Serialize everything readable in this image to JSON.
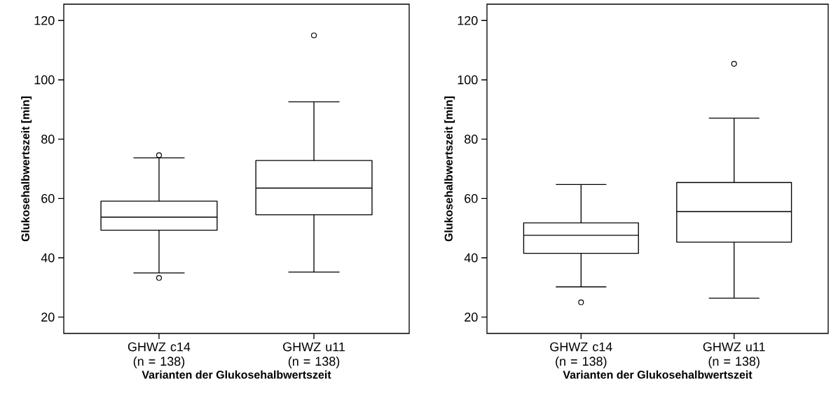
{
  "chart_data": [
    {
      "type": "box",
      "categories": [
        "GHWZ c14 (n = 138)",
        "GHWZ u11 (n = 138)"
      ],
      "boxes": [
        {
          "low": 34.9,
          "q1": 49.3,
          "median": 53.7,
          "q3": 59.1,
          "high": 73.7,
          "outliers": [
            74.6,
            33.2
          ]
        },
        {
          "low": 35.2,
          "q1": 54.5,
          "median": 63.5,
          "q3": 72.8,
          "high": 92.6,
          "outliers": [
            115.0
          ]
        }
      ],
      "color": "#000000",
      "xlabel": "Varianten der Glukosehalbwertszeit",
      "ylabel": "Glukosehalbwertszeit [min]",
      "ylim": [
        14.5,
        125.5
      ],
      "yticks": [
        20,
        40,
        60,
        80,
        100,
        120
      ]
    },
    {
      "type": "box",
      "categories": [
        "GHWZ c14 (n = 138)",
        "GHWZ u11 (n = 138)"
      ],
      "boxes": [
        {
          "low": 30.2,
          "q1": 41.5,
          "median": 47.6,
          "q3": 51.8,
          "high": 64.7,
          "outliers": [
            25.0
          ]
        },
        {
          "low": 26.4,
          "q1": 45.3,
          "median": 55.6,
          "q3": 65.4,
          "high": 87.1,
          "outliers": [
            105.4
          ]
        }
      ],
      "color": "#000000",
      "xlabel": "Varianten der Glukosehalbwertszeit",
      "ylabel": "Glukosehalbwertszeit [min]",
      "ylim": [
        14.5,
        125.5
      ],
      "yticks": [
        20,
        40,
        60,
        80,
        100,
        120
      ]
    }
  ]
}
